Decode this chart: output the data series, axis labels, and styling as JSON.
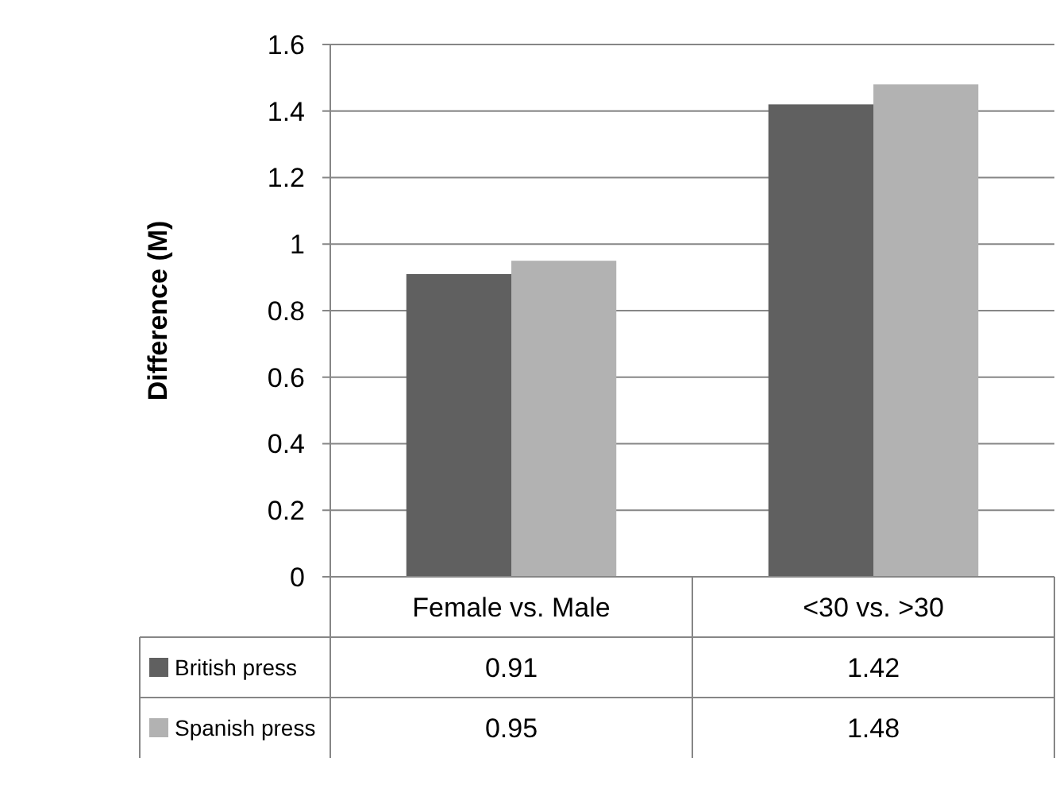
{
  "chart_data": {
    "type": "bar",
    "ylabel": "Difference (M)",
    "categories": [
      "Female vs. Male",
      "<30 vs. >30"
    ],
    "series": [
      {
        "name": "British press",
        "color": "#606060",
        "values": [
          0.91,
          1.42
        ]
      },
      {
        "name": "Spanish press",
        "color": "#b2b2b2",
        "values": [
          0.95,
          1.48
        ]
      }
    ],
    "ylim": [
      0,
      1.6
    ],
    "yticks": [
      0,
      0.2,
      0.4,
      0.6,
      0.8,
      1,
      1.2,
      1.4,
      1.6
    ],
    "grid": "y",
    "legend": "bottom",
    "data_labels": true
  }
}
